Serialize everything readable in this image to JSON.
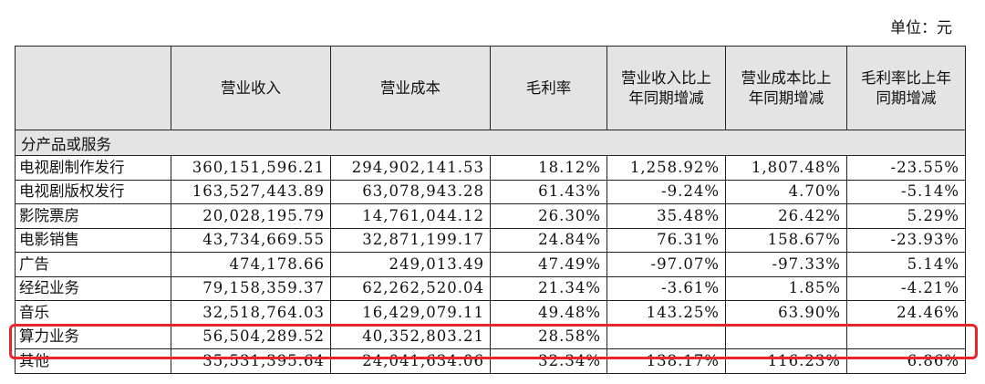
{
  "unit": "单位：元",
  "table": {
    "header": [
      "",
      "营业收入",
      "营业成本",
      "毛利率",
      "营业收入比上年同期增减",
      "营业成本比上年同期增减",
      "毛利率比上年同期增减"
    ],
    "section": "分产品或服务",
    "rows": [
      [
        "电视剧制作发行",
        "360,151,596.21",
        "294,902,141.53",
        "18.12%",
        "1,258.92%",
        "1,807.48%",
        "-23.55%"
      ],
      [
        "电视剧版权发行",
        "163,527,443.89",
        "63,078,943.28",
        "61.43%",
        "-9.24%",
        "4.70%",
        "-5.14%"
      ],
      [
        "影院票房",
        "20,028,195.79",
        "14,761,044.12",
        "26.30%",
        "35.48%",
        "26.42%",
        "5.29%"
      ],
      [
        "电影销售",
        "43,734,669.55",
        "32,871,199.17",
        "24.84%",
        "76.31%",
        "158.67%",
        "-23.93%"
      ],
      [
        "广告",
        "474,178.66",
        "249,013.49",
        "47.49%",
        "-97.07%",
        "-97.33%",
        "5.14%"
      ],
      [
        "经纪业务",
        "79,158,359.37",
        "62,262,520.04",
        "21.34%",
        "-3.61%",
        "1.85%",
        "-4.21%"
      ],
      [
        "音乐",
        "32,518,764.03",
        "16,429,079.11",
        "49.48%",
        "143.25%",
        "63.90%",
        "24.46%"
      ],
      [
        "算力业务",
        "56,504,289.52",
        "40,352,803.21",
        "28.58%",
        null,
        null,
        null
      ],
      [
        "其他",
        "35,531,395.64",
        "24,041,634.06",
        "32.34%",
        "138.17%",
        "116.23%",
        "6.86%"
      ]
    ]
  }
}
